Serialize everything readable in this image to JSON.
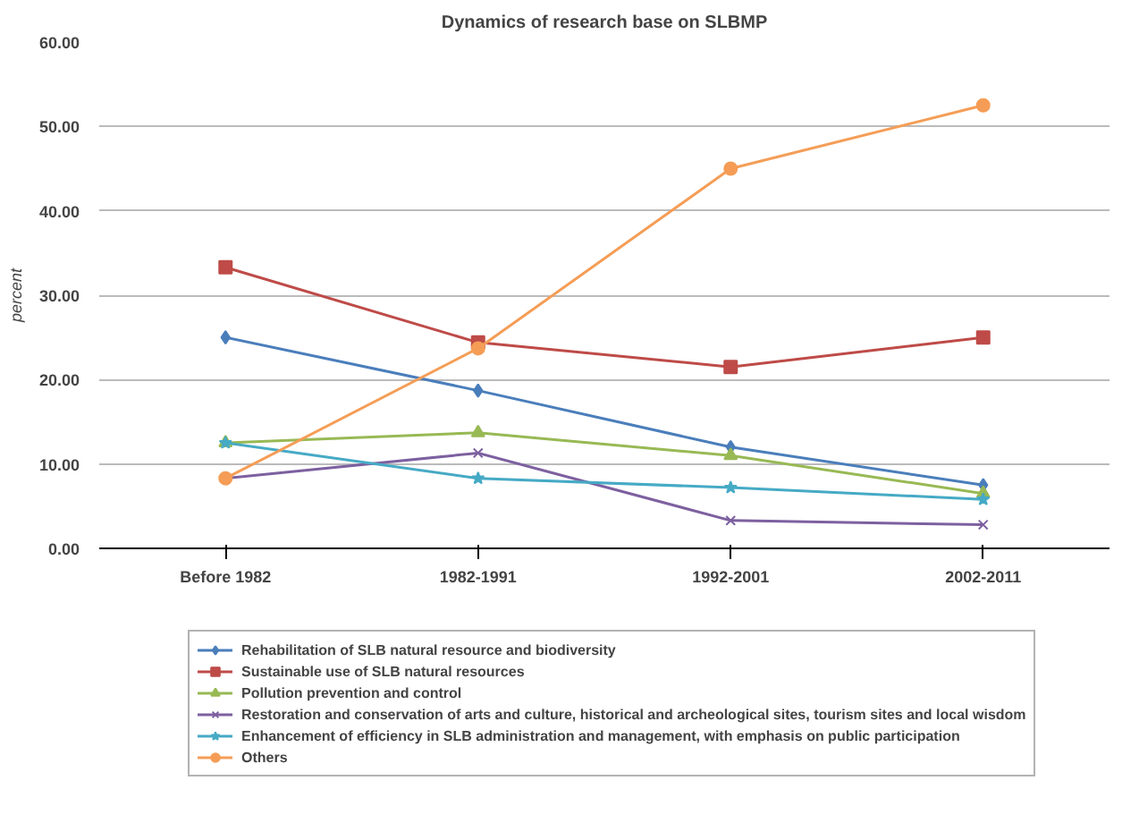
{
  "chart_data": {
    "type": "line",
    "title": "Dynamics of research base on SLBMP",
    "ylabel": "percent",
    "categories": [
      "Before 1982",
      "1982-1991",
      "1992-2001",
      "2002-2011"
    ],
    "ylim": [
      0,
      60
    ],
    "yticks": [
      {
        "value": 0,
        "label": "0.00"
      },
      {
        "value": 10,
        "label": "10.00"
      },
      {
        "value": 20,
        "label": "20.00"
      },
      {
        "value": 30,
        "label": "30.00"
      },
      {
        "value": 40,
        "label": "40.00"
      },
      {
        "value": 50,
        "label": "50.00"
      },
      {
        "value": 60,
        "label": "60.00"
      }
    ],
    "grid": "y",
    "legend": "bottom",
    "line_style": "solid",
    "series": [
      {
        "name": "Rehabilitation of SLB natural resource and biodiversity",
        "color": "#4a7ebb",
        "marker": "diamond",
        "values": [
          25,
          18.7,
          12,
          7.5
        ]
      },
      {
        "name": "Sustainable use of SLB natural resources",
        "color": "#be4b48",
        "marker": "square",
        "values": [
          33.3,
          24.4,
          21.5,
          25
        ]
      },
      {
        "name": "Pollution prevention and control",
        "color": "#98b954",
        "marker": "triangle",
        "values": [
          12.5,
          13.7,
          11,
          6.5
        ]
      },
      {
        "name": "Restoration and conservation of arts and culture, historical and archeological sites, tourism sites and local wisdom",
        "color": "#7d60a0",
        "marker": "cross",
        "values": [
          8.3,
          11.3,
          3.3,
          2.8
        ]
      },
      {
        "name": "Enhancement of efficiency in SLB administration and management, with emphasis on public participation",
        "color": "#46aac5",
        "marker": "star",
        "values": [
          12.5,
          8.3,
          7.2,
          5.8
        ]
      },
      {
        "name": "Others",
        "color": "#f59d56",
        "marker": "circle",
        "values": [
          8.3,
          23.7,
          45,
          52.5
        ]
      }
    ]
  }
}
